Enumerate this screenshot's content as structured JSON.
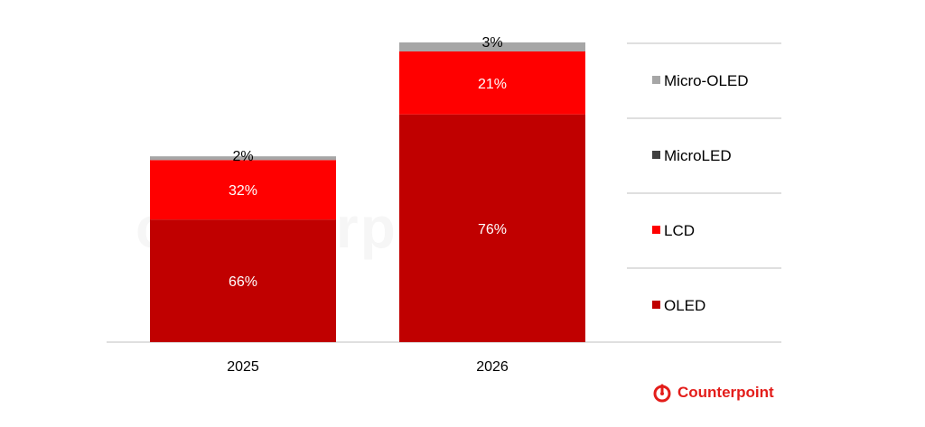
{
  "chart_data": {
    "type": "bar",
    "stacked": true,
    "categories": [
      "2025",
      "2026"
    ],
    "series": [
      {
        "name": "OLED",
        "color": "#c00000",
        "values": [
          66,
          76
        ],
        "labels": [
          "66%",
          "76%"
        ]
      },
      {
        "name": "LCD",
        "color": "#ff0000",
        "values": [
          32,
          21
        ],
        "labels": [
          "32%",
          "21%"
        ]
      },
      {
        "name": "MicroLED",
        "color": "#404040",
        "values": [
          0,
          0
        ],
        "labels": [
          "",
          ""
        ]
      },
      {
        "name": "Micro-OLED",
        "color": "#a6a6a6",
        "values": [
          2,
          3
        ],
        "labels": [
          "2%",
          "3%"
        ]
      }
    ],
    "relative_totals": [
      0.62,
      1.0
    ],
    "legend": {
      "placement": "right",
      "order": [
        "Micro-OLED",
        "MicroLED",
        "LCD",
        "OLED"
      ]
    },
    "grid": false
  },
  "brand": {
    "name": "Counterpoint",
    "color": "#e31d1a"
  },
  "watermark": "counterpoint"
}
